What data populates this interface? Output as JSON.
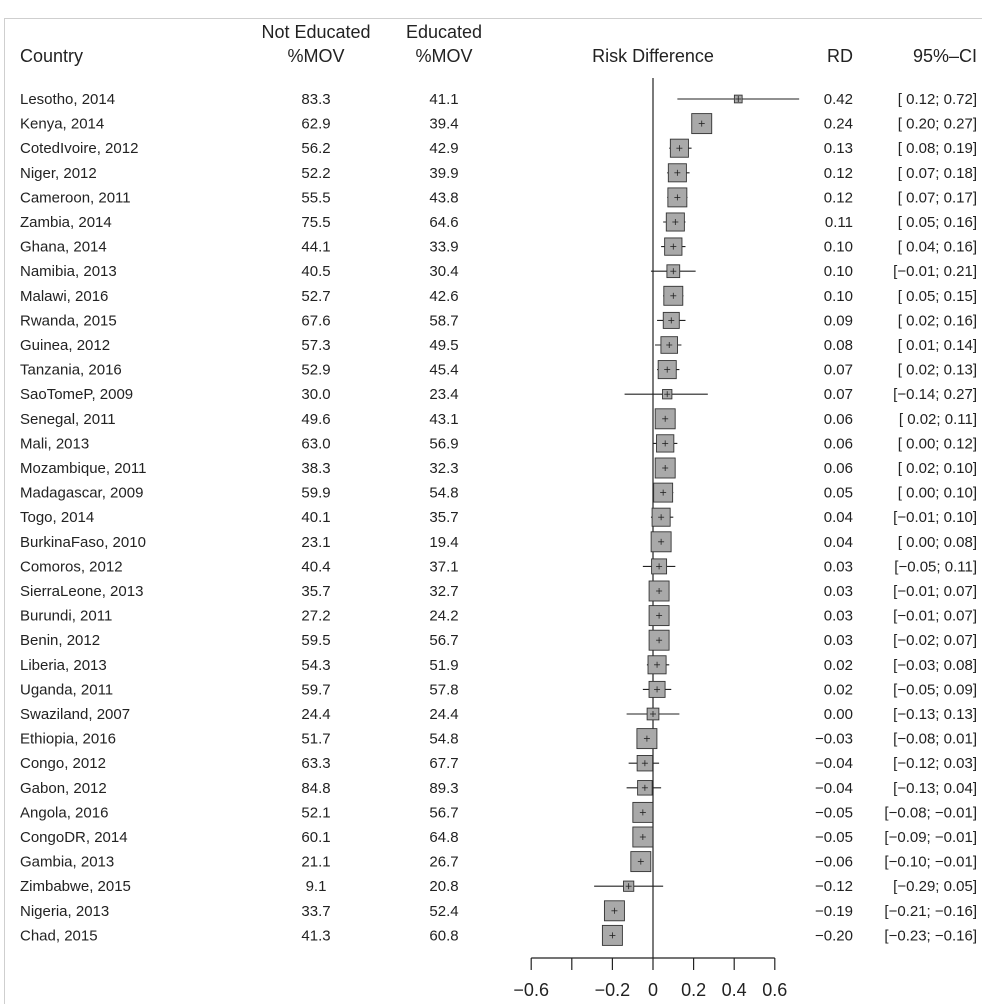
{
  "headers": {
    "country": "Country",
    "not_educated_line1": "Not Educated",
    "not_educated_line2": "%MOV",
    "educated_line1": "Educated",
    "educated_line2": "%MOV",
    "risk_difference": "Risk Difference",
    "rd": "RD",
    "ci": "95%–CI"
  },
  "chart_data": {
    "type": "forest",
    "xlabel": "",
    "xlim": [
      -0.6,
      0.6
    ],
    "x_ticks": [
      -0.6,
      -0.4,
      -0.2,
      0,
      0.2,
      0.4,
      0.6
    ],
    "x_tick_labels": [
      "−0.6",
      "",
      "−0.2",
      "0",
      "0.2",
      "0.4",
      "0.6"
    ],
    "reference_line": 0,
    "rows": [
      {
        "country": "Lesotho, 2014",
        "not_educated": "83.3",
        "educated": "41.1",
        "rd": 0.42,
        "lower": 0.12,
        "upper": 0.72,
        "rd_text": "0.42",
        "ci_text": "[ 0.12;  0.72]"
      },
      {
        "country": "Kenya, 2014",
        "not_educated": "62.9",
        "educated": "39.4",
        "rd": 0.24,
        "lower": 0.2,
        "upper": 0.27,
        "rd_text": "0.24",
        "ci_text": "[ 0.20;  0.27]"
      },
      {
        "country": "CotedIvoire, 2012",
        "not_educated": "56.2",
        "educated": "42.9",
        "rd": 0.13,
        "lower": 0.08,
        "upper": 0.19,
        "rd_text": "0.13",
        "ci_text": "[ 0.08;  0.19]"
      },
      {
        "country": "Niger, 2012",
        "not_educated": "52.2",
        "educated": "39.9",
        "rd": 0.12,
        "lower": 0.07,
        "upper": 0.18,
        "rd_text": "0.12",
        "ci_text": "[ 0.07;  0.18]"
      },
      {
        "country": "Cameroon, 2011",
        "not_educated": "55.5",
        "educated": "43.8",
        "rd": 0.12,
        "lower": 0.07,
        "upper": 0.17,
        "rd_text": "0.12",
        "ci_text": "[ 0.07;  0.17]"
      },
      {
        "country": "Zambia, 2014",
        "not_educated": "75.5",
        "educated": "64.6",
        "rd": 0.11,
        "lower": 0.05,
        "upper": 0.16,
        "rd_text": "0.11",
        "ci_text": "[ 0.05;  0.16]"
      },
      {
        "country": "Ghana, 2014",
        "not_educated": "44.1",
        "educated": "33.9",
        "rd": 0.1,
        "lower": 0.04,
        "upper": 0.16,
        "rd_text": "0.10",
        "ci_text": "[ 0.04;  0.16]"
      },
      {
        "country": "Namibia, 2013",
        "not_educated": "40.5",
        "educated": "30.4",
        "rd": 0.1,
        "lower": -0.01,
        "upper": 0.21,
        "rd_text": "0.10",
        "ci_text": "[−0.01;  0.21]"
      },
      {
        "country": "Malawi, 2016",
        "not_educated": "52.7",
        "educated": "42.6",
        "rd": 0.1,
        "lower": 0.05,
        "upper": 0.15,
        "rd_text": "0.10",
        "ci_text": "[ 0.05;  0.15]"
      },
      {
        "country": "Rwanda, 2015",
        "not_educated": "67.6",
        "educated": "58.7",
        "rd": 0.09,
        "lower": 0.02,
        "upper": 0.16,
        "rd_text": "0.09",
        "ci_text": "[ 0.02;  0.16]"
      },
      {
        "country": "Guinea, 2012",
        "not_educated": "57.3",
        "educated": "49.5",
        "rd": 0.08,
        "lower": 0.01,
        "upper": 0.14,
        "rd_text": "0.08",
        "ci_text": "[ 0.01;  0.14]"
      },
      {
        "country": "Tanzania, 2016",
        "not_educated": "52.9",
        "educated": "45.4",
        "rd": 0.07,
        "lower": 0.02,
        "upper": 0.13,
        "rd_text": "0.07",
        "ci_text": "[ 0.02;  0.13]"
      },
      {
        "country": "SaoTomeP, 2009",
        "not_educated": "30.0",
        "educated": "23.4",
        "rd": 0.07,
        "lower": -0.14,
        "upper": 0.27,
        "rd_text": "0.07",
        "ci_text": "[−0.14;  0.27]"
      },
      {
        "country": "Senegal, 2011",
        "not_educated": "49.6",
        "educated": "43.1",
        "rd": 0.06,
        "lower": 0.02,
        "upper": 0.11,
        "rd_text": "0.06",
        "ci_text": "[ 0.02;  0.11]"
      },
      {
        "country": "Mali, 2013",
        "not_educated": "63.0",
        "educated": "56.9",
        "rd": 0.06,
        "lower": 0.0,
        "upper": 0.12,
        "rd_text": "0.06",
        "ci_text": "[ 0.00;  0.12]"
      },
      {
        "country": "Mozambique, 2011",
        "not_educated": "38.3",
        "educated": "32.3",
        "rd": 0.06,
        "lower": 0.02,
        "upper": 0.1,
        "rd_text": "0.06",
        "ci_text": "[ 0.02;  0.10]"
      },
      {
        "country": "Madagascar, 2009",
        "not_educated": "59.9",
        "educated": "54.8",
        "rd": 0.05,
        "lower": 0.0,
        "upper": 0.1,
        "rd_text": "0.05",
        "ci_text": "[ 0.00;  0.10]"
      },
      {
        "country": "Togo, 2014",
        "not_educated": "40.1",
        "educated": "35.7",
        "rd": 0.04,
        "lower": -0.01,
        "upper": 0.1,
        "rd_text": "0.04",
        "ci_text": "[−0.01;  0.10]"
      },
      {
        "country": "BurkinaFaso, 2010",
        "not_educated": "23.1",
        "educated": "19.4",
        "rd": 0.04,
        "lower": 0.0,
        "upper": 0.08,
        "rd_text": "0.04",
        "ci_text": "[ 0.00;  0.08]"
      },
      {
        "country": "Comoros, 2012",
        "not_educated": "40.4",
        "educated": "37.1",
        "rd": 0.03,
        "lower": -0.05,
        "upper": 0.11,
        "rd_text": "0.03",
        "ci_text": "[−0.05;  0.11]"
      },
      {
        "country": "SierraLeone, 2013",
        "not_educated": "35.7",
        "educated": "32.7",
        "rd": 0.03,
        "lower": -0.01,
        "upper": 0.07,
        "rd_text": "0.03",
        "ci_text": "[−0.01;  0.07]"
      },
      {
        "country": "Burundi, 2011",
        "not_educated": "27.2",
        "educated": "24.2",
        "rd": 0.03,
        "lower": -0.01,
        "upper": 0.07,
        "rd_text": "0.03",
        "ci_text": "[−0.01;  0.07]"
      },
      {
        "country": "Benin, 2012",
        "not_educated": "59.5",
        "educated": "56.7",
        "rd": 0.03,
        "lower": -0.02,
        "upper": 0.07,
        "rd_text": "0.03",
        "ci_text": "[−0.02;  0.07]"
      },
      {
        "country": "Liberia, 2013",
        "not_educated": "54.3",
        "educated": "51.9",
        "rd": 0.02,
        "lower": -0.03,
        "upper": 0.08,
        "rd_text": "0.02",
        "ci_text": "[−0.03;  0.08]"
      },
      {
        "country": "Uganda, 2011",
        "not_educated": "59.7",
        "educated": "57.8",
        "rd": 0.02,
        "lower": -0.05,
        "upper": 0.09,
        "rd_text": "0.02",
        "ci_text": "[−0.05;  0.09]"
      },
      {
        "country": "Swaziland, 2007",
        "not_educated": "24.4",
        "educated": "24.4",
        "rd": 0.0,
        "lower": -0.13,
        "upper": 0.13,
        "rd_text": "0.00",
        "ci_text": "[−0.13;  0.13]"
      },
      {
        "country": "Ethiopia, 2016",
        "not_educated": "51.7",
        "educated": "54.8",
        "rd": -0.03,
        "lower": -0.08,
        "upper": 0.01,
        "rd_text": "−0.03",
        "ci_text": "[−0.08;  0.01]"
      },
      {
        "country": "Congo, 2012",
        "not_educated": "63.3",
        "educated": "67.7",
        "rd": -0.04,
        "lower": -0.12,
        "upper": 0.03,
        "rd_text": "−0.04",
        "ci_text": "[−0.12;  0.03]"
      },
      {
        "country": "Gabon, 2012",
        "not_educated": "84.8",
        "educated": "89.3",
        "rd": -0.04,
        "lower": -0.13,
        "upper": 0.04,
        "rd_text": "−0.04",
        "ci_text": "[−0.13;  0.04]"
      },
      {
        "country": "Angola, 2016",
        "not_educated": "52.1",
        "educated": "56.7",
        "rd": -0.05,
        "lower": -0.08,
        "upper": -0.01,
        "rd_text": "−0.05",
        "ci_text": "[−0.08; −0.01]"
      },
      {
        "country": "CongoDR, 2014",
        "not_educated": "60.1",
        "educated": "64.8",
        "rd": -0.05,
        "lower": -0.09,
        "upper": -0.01,
        "rd_text": "−0.05",
        "ci_text": "[−0.09; −0.01]"
      },
      {
        "country": "Gambia, 2013",
        "not_educated": "21.1",
        "educated": "26.7",
        "rd": -0.06,
        "lower": -0.1,
        "upper": -0.01,
        "rd_text": "−0.06",
        "ci_text": "[−0.10; −0.01]"
      },
      {
        "country": "Zimbabwe, 2015",
        "not_educated": "9.1",
        "educated": "20.8",
        "rd": -0.12,
        "lower": -0.29,
        "upper": 0.05,
        "rd_text": "−0.12",
        "ci_text": "[−0.29;  0.05]"
      },
      {
        "country": "Nigeria, 2013",
        "not_educated": "33.7",
        "educated": "52.4",
        "rd": -0.19,
        "lower": -0.21,
        "upper": -0.16,
        "rd_text": "−0.19",
        "ci_text": "[−0.21; −0.16]"
      },
      {
        "country": "Chad, 2015",
        "not_educated": "41.3",
        "educated": "60.8",
        "rd": -0.2,
        "lower": -0.23,
        "upper": -0.16,
        "rd_text": "−0.20",
        "ci_text": "[−0.23; −0.16]"
      }
    ]
  },
  "colors": {
    "box_fill": "#a9a9a9",
    "box_stroke": "#333333",
    "line": "#222222",
    "text": "#222222",
    "frame": "#cfcfcf"
  }
}
